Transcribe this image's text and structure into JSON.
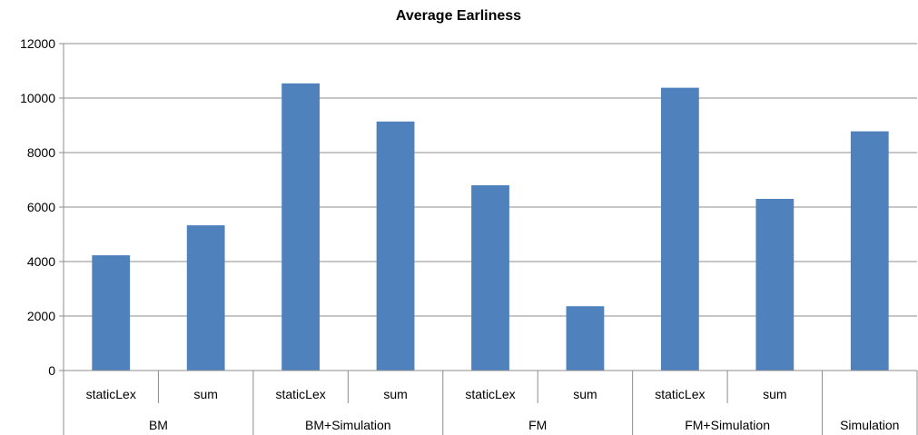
{
  "chart_data": {
    "type": "bar",
    "title": "Average Earliness",
    "xlabel": "",
    "ylabel": "",
    "ylim": [
      0,
      12000
    ],
    "yticks": [
      0,
      2000,
      4000,
      6000,
      8000,
      10000,
      12000
    ],
    "grid": true,
    "legend": "none",
    "bar_color": "#4f81bd",
    "categories": [
      {
        "group": "BM",
        "sub": "staticLex",
        "value": 4230
      },
      {
        "group": "BM",
        "sub": "sum",
        "value": 5330
      },
      {
        "group": "BM+Simulation",
        "sub": "staticLex",
        "value": 10540
      },
      {
        "group": "BM+Simulation",
        "sub": "sum",
        "value": 9140
      },
      {
        "group": "FM",
        "sub": "staticLex",
        "value": 6800
      },
      {
        "group": "FM",
        "sub": "sum",
        "value": 2360
      },
      {
        "group": "FM+Simulation",
        "sub": "staticLex",
        "value": 10380
      },
      {
        "group": "FM+Simulation",
        "sub": "sum",
        "value": 6300
      },
      {
        "group": "Simulation",
        "sub": "",
        "value": 8780
      }
    ],
    "groups": [
      "BM",
      "BM+Simulation",
      "FM",
      "FM+Simulation",
      "Simulation"
    ]
  }
}
